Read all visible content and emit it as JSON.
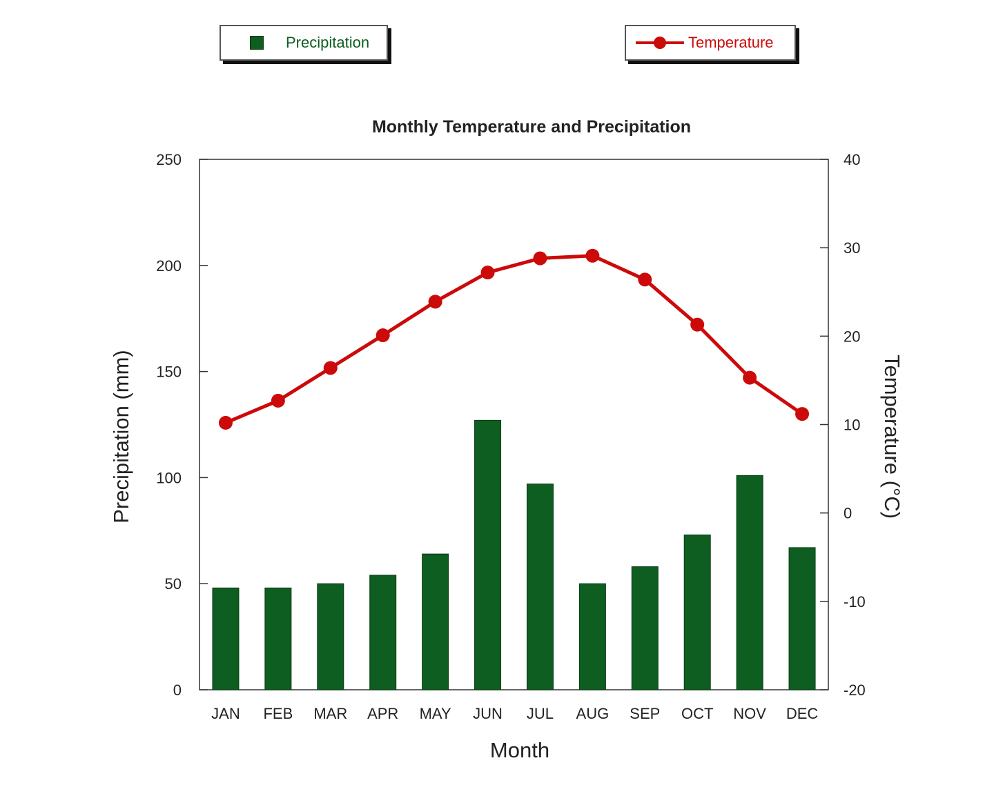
{
  "colors": {
    "precipitation": "#0d5e20",
    "temperature": "#cc0a0a",
    "axis": "#333333",
    "text": "#222222"
  },
  "legend": {
    "precipitation_label": "Precipitation",
    "temperature_label": "Temperature"
  },
  "chart_data": {
    "type": "bar",
    "title": "Monthly Temperature and Precipitation",
    "xlabel": "Month",
    "ylabel": "Precipitation (mm)",
    "y2label": "Temperature (°C)",
    "categories": [
      "JAN",
      "FEB",
      "MAR",
      "APR",
      "MAY",
      "JUN",
      "JUL",
      "AUG",
      "SEP",
      "OCT",
      "NOV",
      "DEC"
    ],
    "ylim": [
      0,
      250
    ],
    "y2lim": [
      -20,
      40
    ],
    "yticks": [
      0,
      50,
      100,
      150,
      200,
      250
    ],
    "y2ticks": [
      -20,
      -10,
      0,
      10,
      20,
      30,
      40
    ],
    "series": [
      {
        "name": "Precipitation",
        "type": "bar",
        "axis": "left",
        "values": [
          48,
          48,
          50,
          54,
          64,
          127,
          97,
          50,
          58,
          73,
          101,
          67
        ]
      },
      {
        "name": "Temperature",
        "type": "line",
        "axis": "right",
        "values": [
          10.2,
          12.7,
          16.4,
          20.1,
          23.9,
          27.2,
          28.8,
          29.1,
          26.4,
          21.3,
          15.3,
          11.2
        ]
      }
    ],
    "grid": false,
    "legend_position": "top"
  }
}
